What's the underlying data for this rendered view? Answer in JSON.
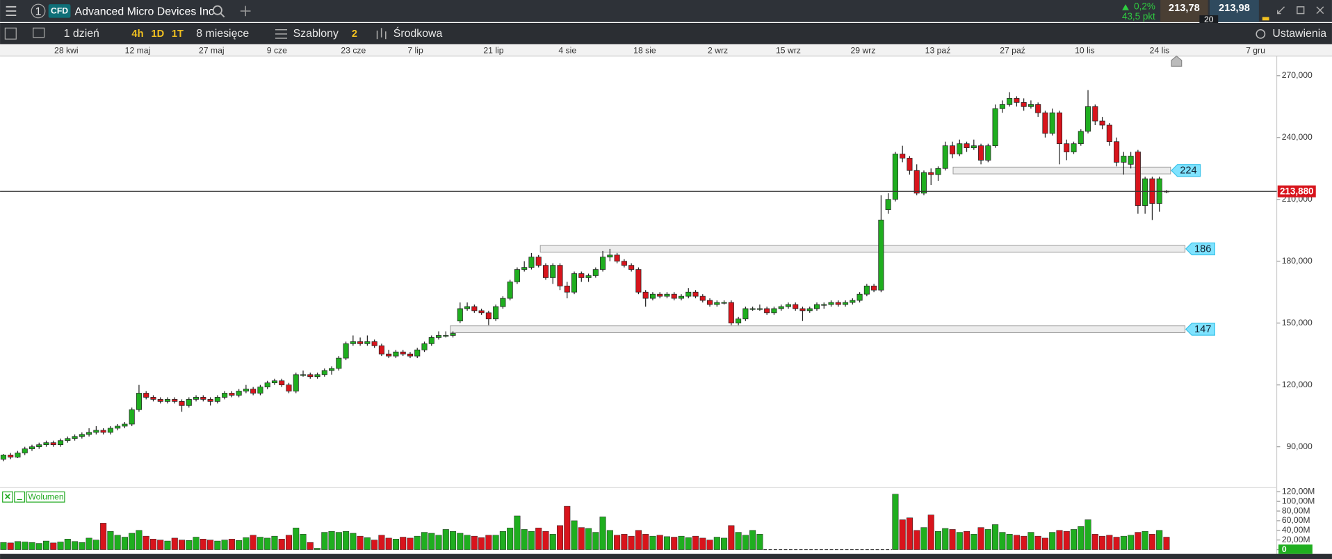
{
  "header": {
    "tab_number": "1",
    "badge": "CFD",
    "instrument": "Advanced Micro Devices Inc",
    "change_pct": "0,2%",
    "change_pts": "43,5 pkt",
    "bid": "213,78",
    "ask": "213,98",
    "spread": "20"
  },
  "toolbar": {
    "interval": "1 dzień",
    "quick": [
      "4h",
      "1D",
      "1T"
    ],
    "range": "8 miesięce",
    "templates": "Szablony",
    "templates_count": "2",
    "indicator": "Środkowa",
    "settings": "Ustawienia"
  },
  "chart_data": {
    "type": "candlestick",
    "date_labels": [
      "28 kwi",
      "12 maj",
      "27 maj",
      "9 cze",
      "23 cze",
      "7 lip",
      "21 lip",
      "4 sie",
      "18 sie",
      "2 wrz",
      "15 wrz",
      "29 wrz",
      "13 paź",
      "27 paź",
      "10 lis",
      "24 lis",
      "7 gru"
    ],
    "ylim": [
      70.6,
      279.5
    ],
    "yticks": [
      {
        "value": 90,
        "label": "90,000"
      },
      {
        "value": 120,
        "label": "120,000"
      },
      {
        "value": 150,
        "label": "150,000"
      },
      {
        "value": 180,
        "label": "180,000"
      },
      {
        "value": 210,
        "label": "210,000"
      },
      {
        "value": 240,
        "label": "240,000"
      },
      {
        "value": 270,
        "label": "270,000"
      }
    ],
    "last_price": {
      "value": 213.88,
      "label": "213,880"
    },
    "levels": [
      224,
      186,
      147
    ],
    "up_color": "#1fae1f",
    "down_color": "#d8141c",
    "candles": [
      [
        84,
        86.5,
        83,
        86
      ],
      [
        86,
        87,
        84,
        85
      ],
      [
        85,
        88,
        84.5,
        87
      ],
      [
        87,
        90,
        86,
        89
      ],
      [
        89,
        91,
        88,
        90
      ],
      [
        90,
        92,
        89,
        91
      ],
      [
        91,
        93,
        90,
        92
      ],
      [
        92,
        93,
        90,
        91
      ],
      [
        91,
        94,
        90,
        93
      ],
      [
        93,
        95,
        92,
        94
      ],
      [
        94,
        96,
        93,
        95
      ],
      [
        95,
        97,
        94,
        96
      ],
      [
        96,
        99,
        95,
        97
      ],
      [
        97,
        100,
        96,
        98
      ],
      [
        98,
        99,
        96,
        97
      ],
      [
        97,
        100,
        96,
        99
      ],
      [
        99,
        101,
        98,
        100
      ],
      [
        100,
        102,
        99,
        101
      ],
      [
        101,
        109,
        100,
        108
      ],
      [
        108,
        120,
        107,
        116
      ],
      [
        116,
        117,
        113,
        114
      ],
      [
        114,
        115,
        112,
        113
      ],
      [
        113,
        114,
        111,
        112
      ],
      [
        112,
        114,
        111,
        113
      ],
      [
        113,
        114,
        111,
        112
      ],
      [
        112,
        113,
        107,
        110
      ],
      [
        110,
        114,
        109,
        113
      ],
      [
        113,
        115,
        112,
        114
      ],
      [
        114,
        115,
        112,
        113
      ],
      [
        113,
        114,
        110,
        112
      ],
      [
        112,
        115,
        111,
        114
      ],
      [
        114,
        117,
        113,
        116
      ],
      [
        116,
        117,
        114,
        115
      ],
      [
        115,
        118,
        114,
        117
      ],
      [
        117,
        120,
        116,
        118
      ],
      [
        118,
        119,
        115,
        116
      ],
      [
        116,
        120,
        115,
        119
      ],
      [
        119,
        122,
        118,
        121
      ],
      [
        121,
        123,
        120,
        122
      ],
      [
        122,
        123,
        119,
        120
      ],
      [
        120,
        121,
        116,
        117
      ],
      [
        117,
        126,
        116,
        125
      ],
      [
        125,
        127,
        124,
        125
      ],
      [
        125,
        126,
        123,
        124
      ],
      [
        124,
        126,
        123,
        125
      ],
      [
        125,
        128,
        124,
        127
      ],
      [
        127,
        129,
        125,
        128
      ],
      [
        128,
        134,
        127,
        133
      ],
      [
        133,
        141,
        132,
        140
      ],
      [
        140,
        144,
        139,
        141
      ],
      [
        141,
        143,
        139,
        140
      ],
      [
        140,
        144,
        139,
        141
      ],
      [
        141,
        142,
        138,
        139
      ],
      [
        139,
        140,
        134,
        135
      ],
      [
        135,
        137,
        133,
        134
      ],
      [
        134,
        137,
        133,
        136
      ],
      [
        136,
        137,
        134,
        135
      ],
      [
        135,
        136,
        133,
        134
      ],
      [
        134,
        138,
        133,
        137
      ],
      [
        137,
        141,
        136,
        140
      ],
      [
        140,
        144,
        139,
        143
      ],
      [
        143,
        146,
        142,
        144
      ],
      [
        144,
        146,
        143,
        144
      ],
      [
        144,
        146,
        143,
        145
      ],
      [
        151,
        160,
        150,
        157
      ],
      [
        157,
        160,
        156,
        158
      ],
      [
        158,
        159,
        155,
        156
      ],
      [
        156,
        157,
        154,
        155
      ],
      [
        155,
        156,
        149,
        152
      ],
      [
        152,
        159,
        151,
        158
      ],
      [
        158,
        163,
        157,
        162
      ],
      [
        162,
        171,
        161,
        170
      ],
      [
        170,
        177,
        169,
        176
      ],
      [
        176,
        180,
        175,
        177
      ],
      [
        177,
        184,
        176,
        182
      ],
      [
        182,
        183,
        177,
        178
      ],
      [
        178,
        179,
        171,
        172
      ],
      [
        172,
        179,
        169,
        178
      ],
      [
        178,
        179,
        166,
        168
      ],
      [
        168,
        170,
        162,
        165
      ],
      [
        165,
        175,
        164,
        174
      ],
      [
        174,
        175,
        170,
        172
      ],
      [
        172,
        174,
        170,
        173
      ],
      [
        173,
        177,
        172,
        176
      ],
      [
        176,
        185,
        175,
        182
      ],
      [
        182,
        186,
        180,
        183
      ],
      [
        183,
        184,
        179,
        180
      ],
      [
        180,
        181,
        177,
        178
      ],
      [
        178,
        179,
        175,
        176
      ],
      [
        176,
        177,
        164,
        165
      ],
      [
        165,
        166,
        158,
        162
      ],
      [
        162,
        165,
        161,
        164
      ],
      [
        164,
        165,
        162,
        163
      ],
      [
        163,
        165,
        162,
        164
      ],
      [
        164,
        165,
        161,
        162
      ],
      [
        162,
        164,
        161,
        163
      ],
      [
        163,
        167,
        162,
        165
      ],
      [
        165,
        166,
        162,
        163
      ],
      [
        163,
        164,
        160,
        161
      ],
      [
        161,
        162,
        158,
        159
      ],
      [
        159,
        161,
        158,
        160
      ],
      [
        160,
        161,
        159,
        160
      ],
      [
        160,
        161,
        149,
        150
      ],
      [
        150,
        153,
        149,
        152
      ],
      [
        152,
        158,
        151,
        157
      ],
      [
        157,
        158,
        156,
        157
      ],
      [
        157,
        159,
        156,
        157
      ],
      [
        157,
        158,
        154,
        155
      ],
      [
        155,
        158,
        154,
        157
      ],
      [
        157,
        159,
        156,
        158
      ],
      [
        158,
        160,
        157,
        159
      ],
      [
        159,
        160,
        156,
        157
      ],
      [
        157,
        158,
        151,
        156
      ],
      [
        156,
        158,
        155,
        157
      ],
      [
        157,
        160,
        156,
        159
      ],
      [
        159,
        160,
        157,
        159
      ],
      [
        159,
        161,
        158,
        160
      ],
      [
        160,
        161,
        158,
        159
      ],
      [
        159,
        161,
        158,
        160
      ],
      [
        160,
        162,
        159,
        161
      ],
      [
        161,
        165,
        160,
        164
      ],
      [
        164,
        169,
        163,
        168
      ],
      [
        168,
        169,
        165,
        166
      ],
      [
        166,
        212,
        165,
        200
      ],
      [
        205,
        213,
        203,
        210
      ],
      [
        210,
        233,
        209,
        232
      ],
      [
        232,
        236,
        228,
        230
      ],
      [
        230,
        231,
        222,
        224
      ],
      [
        224,
        227,
        212,
        213
      ],
      [
        213,
        224,
        212,
        223
      ],
      [
        223,
        225,
        217,
        222
      ],
      [
        222,
        226,
        219,
        225
      ],
      [
        225,
        238,
        224,
        236
      ],
      [
        236,
        238,
        230,
        232
      ],
      [
        232,
        239,
        231,
        237
      ],
      [
        237,
        238,
        233,
        235
      ],
      [
        235,
        239,
        234,
        236
      ],
      [
        236,
        237,
        227,
        229
      ],
      [
        229,
        237,
        228,
        236
      ],
      [
        236,
        256,
        235,
        254
      ],
      [
        254,
        258,
        252,
        256
      ],
      [
        256,
        262,
        255,
        259
      ],
      [
        259,
        260,
        255,
        257
      ],
      [
        257,
        259,
        253,
        255
      ],
      [
        255,
        258,
        254,
        256
      ],
      [
        256,
        257,
        250,
        252
      ],
      [
        252,
        253,
        240,
        242
      ],
      [
        242,
        254,
        241,
        252
      ],
      [
        252,
        253,
        227,
        237
      ],
      [
        237,
        239,
        229,
        233
      ],
      [
        233,
        238,
        232,
        237
      ],
      [
        237,
        244,
        236,
        243
      ],
      [
        243,
        263,
        242,
        255
      ],
      [
        255,
        256,
        246,
        248
      ],
      [
        248,
        250,
        244,
        246
      ],
      [
        246,
        247,
        236,
        238
      ],
      [
        238,
        240,
        226,
        228
      ],
      [
        228,
        233,
        222,
        231
      ],
      [
        227,
        233,
        225,
        231
      ],
      [
        233,
        234,
        203,
        207
      ],
      [
        207,
        221,
        203,
        220
      ],
      [
        220,
        221,
        200,
        208
      ],
      [
        208,
        221,
        204,
        220
      ],
      [
        214,
        214.5,
        213,
        213.88
      ]
    ],
    "volume": {
      "name": "Wolumen",
      "ylim": [
        0,
        125
      ],
      "yticks": [
        {
          "value": 0,
          "label": "0"
        },
        {
          "value": 20,
          "label": "20,00M"
        },
        {
          "value": 40,
          "label": "40,00M"
        },
        {
          "value": 60,
          "label": "60,00M"
        },
        {
          "value": 80,
          "label": "80,00M"
        },
        {
          "value": 100,
          "label": "100,00M"
        },
        {
          "value": 120,
          "label": "120,00M"
        }
      ],
      "values": [
        15,
        14,
        17,
        16,
        15,
        13,
        18,
        14,
        16,
        22,
        17,
        15,
        24,
        20,
        55,
        38,
        30,
        26,
        34,
        40,
        28,
        22,
        20,
        18,
        24,
        20,
        19,
        26,
        22,
        20,
        18,
        20,
        22,
        19,
        25,
        30,
        26,
        24,
        28,
        22,
        30,
        45,
        32,
        15,
        3,
        36,
        38,
        36,
        38,
        34,
        28,
        25,
        20,
        30,
        24,
        22,
        26,
        24,
        28,
        36,
        34,
        30,
        42,
        38,
        34,
        30,
        28,
        25,
        30,
        30,
        38,
        45,
        70,
        42,
        38,
        45,
        38,
        32,
        50,
        90,
        60,
        46,
        44,
        36,
        68,
        40,
        30,
        32,
        28,
        40,
        32,
        28,
        30,
        27,
        26,
        28,
        25,
        28,
        24,
        20,
        26,
        24,
        50,
        36,
        30,
        40,
        32,
        null,
        null,
        null,
        null,
        null,
        null,
        null,
        null,
        null,
        null,
        null,
        null,
        null,
        null,
        null,
        null,
        null,
        null,
        115,
        62,
        66,
        40,
        46,
        72,
        38,
        44,
        42,
        36,
        38,
        32,
        46,
        42,
        52,
        36,
        32,
        30,
        28,
        36,
        28,
        24,
        36,
        40,
        38,
        42,
        48,
        62,
        32,
        28,
        30,
        26,
        28,
        30,
        36,
        38,
        32,
        40,
        26
      ]
    }
  }
}
